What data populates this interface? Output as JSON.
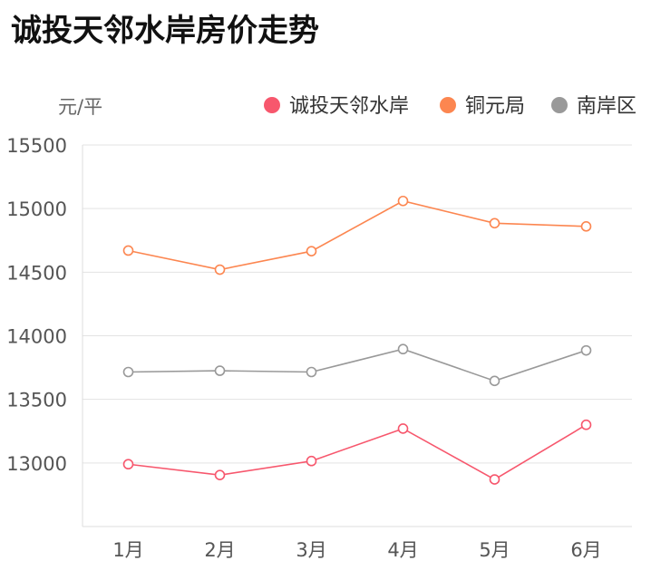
{
  "title": "诚投天邻水岸房价走势",
  "chart_data": {
    "type": "line",
    "title": "诚投天邻水岸房价走势",
    "ylabel": "元/平",
    "xlabel": "",
    "categories": [
      "1月",
      "2月",
      "3月",
      "4月",
      "5月",
      "6月"
    ],
    "ylim": [
      12500,
      15500
    ],
    "yticks": [
      13000,
      13500,
      14000,
      14500,
      15000,
      15500
    ],
    "grid": true,
    "legend": "top-right",
    "series": [
      {
        "name": "诚投天邻水岸",
        "color": "#f7576d",
        "values": [
          12990,
          12905,
          13015,
          13270,
          12870,
          13300
        ]
      },
      {
        "name": "铜元局",
        "color": "#fc8650",
        "values": [
          14670,
          14520,
          14665,
          15060,
          14885,
          14860
        ]
      },
      {
        "name": "南岸区",
        "color": "#999999",
        "values": [
          13715,
          13725,
          13715,
          13895,
          13645,
          13885
        ]
      }
    ]
  }
}
